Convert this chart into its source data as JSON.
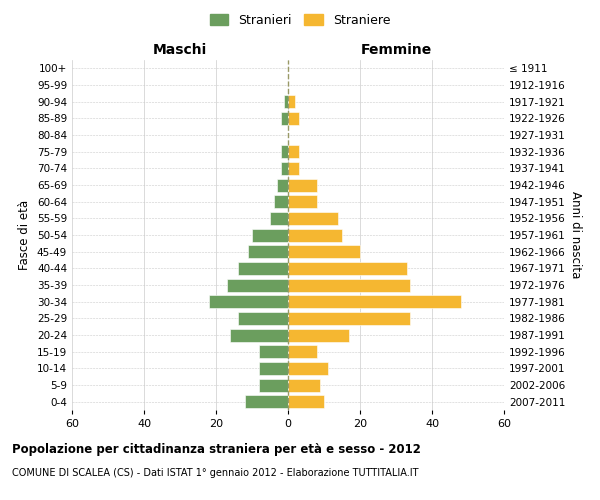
{
  "age_groups": [
    "0-4",
    "5-9",
    "10-14",
    "15-19",
    "20-24",
    "25-29",
    "30-34",
    "35-39",
    "40-44",
    "45-49",
    "50-54",
    "55-59",
    "60-64",
    "65-69",
    "70-74",
    "75-79",
    "80-84",
    "85-89",
    "90-94",
    "95-99",
    "100+"
  ],
  "birth_years": [
    "2007-2011",
    "2002-2006",
    "1997-2001",
    "1992-1996",
    "1987-1991",
    "1982-1986",
    "1977-1981",
    "1972-1976",
    "1967-1971",
    "1962-1966",
    "1957-1961",
    "1952-1956",
    "1947-1951",
    "1942-1946",
    "1937-1941",
    "1932-1936",
    "1927-1931",
    "1922-1926",
    "1917-1921",
    "1912-1916",
    "≤ 1911"
  ],
  "maschi": [
    12,
    8,
    8,
    8,
    16,
    14,
    22,
    17,
    14,
    11,
    10,
    5,
    4,
    3,
    2,
    2,
    0,
    2,
    1,
    0,
    0
  ],
  "femmine": [
    10,
    9,
    11,
    8,
    17,
    34,
    48,
    34,
    33,
    20,
    15,
    14,
    8,
    8,
    3,
    3,
    0,
    3,
    2,
    0,
    0
  ],
  "male_color": "#6b9e5e",
  "female_color": "#f5b731",
  "background_color": "#ffffff",
  "grid_color": "#cccccc",
  "center_line_color": "#999966",
  "title": "Popolazione per cittadinanza straniera per età e sesso - 2012",
  "subtitle": "COMUNE DI SCALEA (CS) - Dati ISTAT 1° gennaio 2012 - Elaborazione TUTTITALIA.IT",
  "xlabel_left": "Maschi",
  "xlabel_right": "Femmine",
  "ylabel_left": "Fasce di età",
  "ylabel_right": "Anni di nascita",
  "xlim": 60,
  "legend_labels": [
    "Stranieri",
    "Straniere"
  ]
}
